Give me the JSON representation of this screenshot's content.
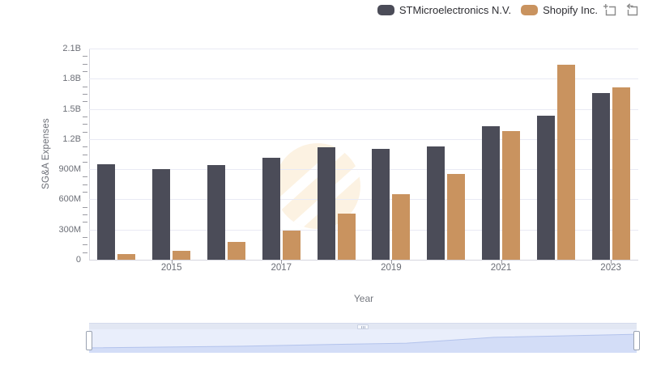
{
  "legend": {
    "items": [
      {
        "label": "STMicroelectronics N.V.",
        "color": "#4b4c58"
      },
      {
        "label": "Shopify Inc.",
        "color": "#c9935f"
      }
    ]
  },
  "toolbar": {
    "zoom_button": "zoom-to-selection",
    "reset_button": "reset-zoom"
  },
  "chart_data": {
    "type": "bar",
    "title": "",
    "xlabel": "Year",
    "ylabel": "SG&A Expenses",
    "unit": "USD millions",
    "categories": [
      "2014",
      "2015",
      "2016",
      "2017",
      "2018",
      "2019",
      "2020",
      "2021",
      "2022",
      "2023"
    ],
    "series": [
      {
        "name": "STMicroelectronics N.V.",
        "color": "#4b4c58",
        "values": [
          950,
          900,
          940,
          1010,
          1115,
          1100,
          1130,
          1325,
          1430,
          1655
        ]
      },
      {
        "name": "Shopify Inc.",
        "color": "#c9935f",
        "values": [
          60,
          90,
          175,
          290,
          460,
          650,
          850,
          1280,
          1940,
          1710
        ]
      }
    ],
    "ylim_millions": [
      0,
      2100
    ],
    "ytick_interval_millions": 300,
    "ytick_labels": [
      "0",
      "300M",
      "600M",
      "900M",
      "1.2B",
      "1.5B",
      "1.8B",
      "2.1B"
    ],
    "minor_tick_interval_millions": 75,
    "xtick_labels_visible": [
      "2015",
      "2017",
      "2019",
      "2021",
      "2023"
    ],
    "grid": true,
    "legend_position": "top-right"
  },
  "scrollbar": {
    "type": "navigator-range-slider",
    "range": "full",
    "trend": "rising",
    "area_points_norm": [
      [
        0,
        0.21
      ],
      [
        0.28,
        0.28
      ],
      [
        0.45,
        0.36
      ],
      [
        0.58,
        0.41
      ],
      [
        0.74,
        0.66
      ],
      [
        1,
        0.79
      ]
    ],
    "colors": {
      "background": "#e9eefb",
      "fill": "#d3ddf7",
      "line": "#b3c3ec"
    }
  },
  "watermark": {
    "shape": "circle-logo",
    "color": "#fcf2e2"
  }
}
